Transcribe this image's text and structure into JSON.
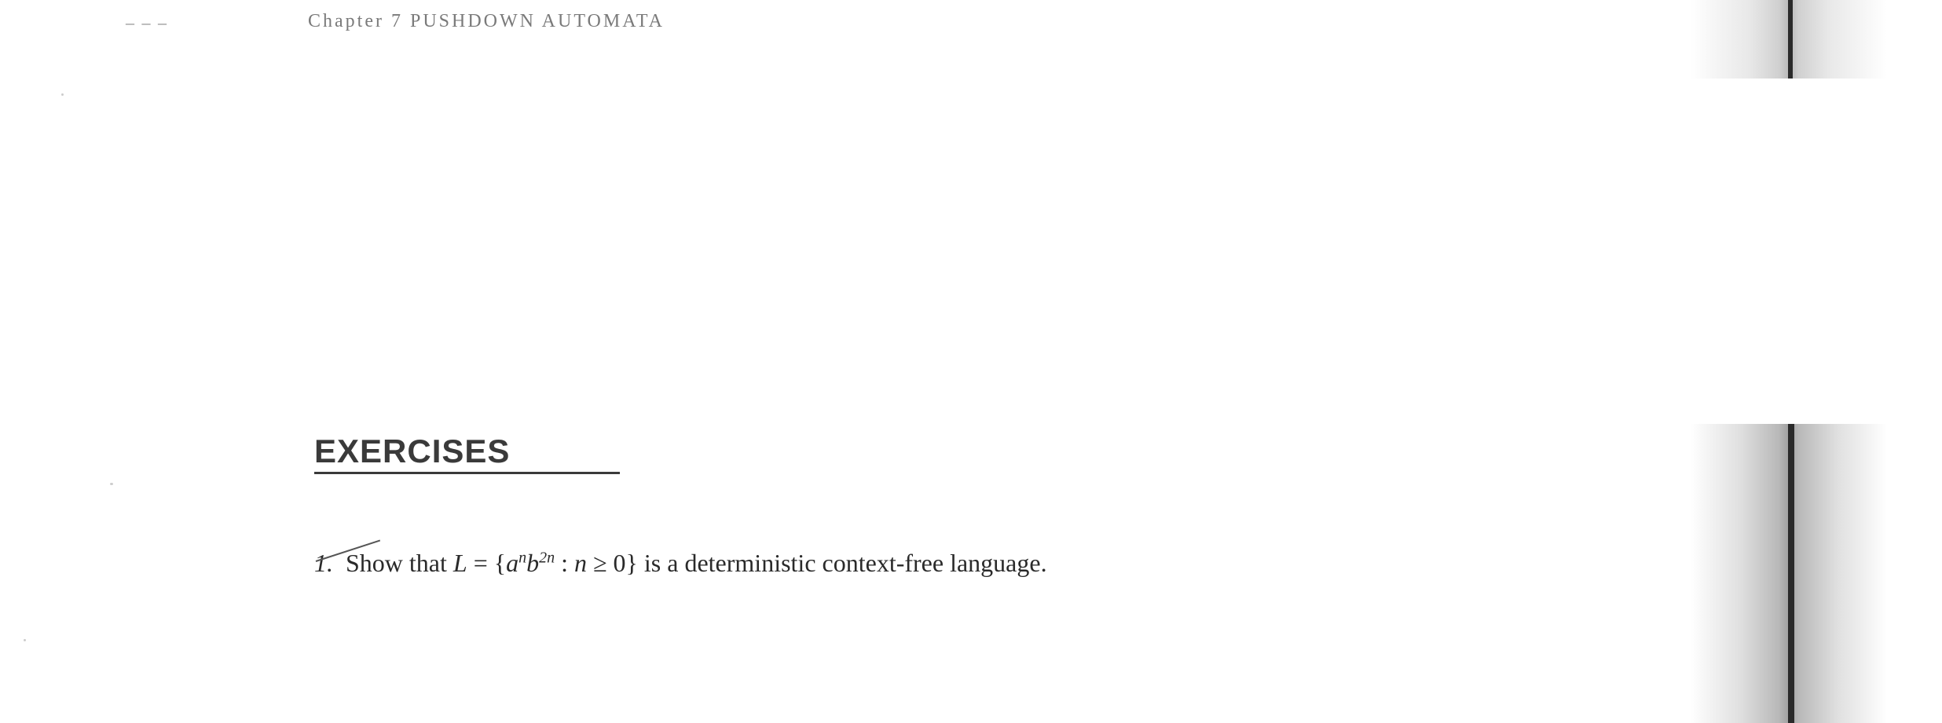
{
  "header": {
    "page_trace": "– – –",
    "chapter_text": "Chapter 7   PUSHDOWN AUTOMATA"
  },
  "section": {
    "heading": "EXERCISES"
  },
  "exercise": {
    "number": "1.",
    "prefix_text": "Show that ",
    "L_symbol": "L",
    "equals": " = ",
    "open_brace": "{",
    "a_symbol": "a",
    "a_exponent": "n",
    "b_symbol": "b",
    "b_exponent": "2n",
    "colon": " : ",
    "n_symbol": "n",
    "geq": " ≥ 0",
    "close_brace": "}",
    "suffix_text": " is a deterministic context-free language."
  },
  "colors": {
    "background": "#ffffff",
    "header_text": "#7a7a7a",
    "heading_text": "#3a3a3a",
    "body_text": "#2a2a2a",
    "artifact_dark": "#2a2a2a"
  },
  "typography": {
    "header_fontsize": 24,
    "heading_fontsize": 42,
    "body_fontsize": 32,
    "superscript_fontsize": 20
  }
}
